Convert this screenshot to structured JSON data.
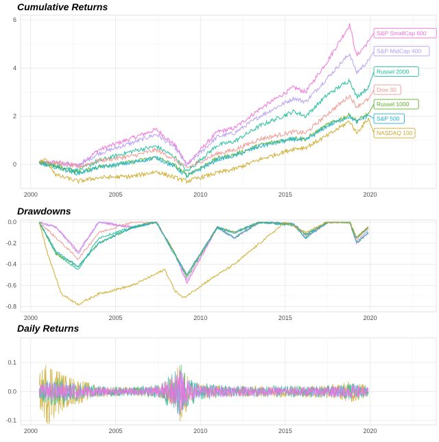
{
  "colors": {
    "S&P SmallCap 600": "#f06fd8",
    "S&P MidCap 400": "#b69cf5",
    "Russel 2000": "#1cbc9a",
    "Dow 30": "#f0958d",
    "Russel 1000": "#58b026",
    "S&P 500": "#1fb2d6",
    "NASDAQ 100": "#cda826"
  },
  "chart_data": [
    {
      "type": "line",
      "title": "Cumulative Returns",
      "xlim": [
        1999.4,
        2023.9
      ],
      "ylim": [
        -1.0,
        6.2
      ],
      "x_ticks": [
        2000,
        2005,
        2010,
        2015,
        2020
      ],
      "x_tick_labels": [
        "2000",
        "2005",
        "2010",
        "2015",
        "2020"
      ],
      "y_ticks": [
        0,
        2,
        4,
        6
      ],
      "y_tick_labels": [
        "0",
        "2",
        "4",
        "6"
      ],
      "grid": true,
      "series": [
        {
          "name": "S&P SmallCap 600",
          "label_y": 5.45,
          "x": [
            2000.5,
            2001.5,
            2002.8,
            2004.0,
            2006.0,
            2007.4,
            2008.5,
            2009.2,
            2011.0,
            2012.0,
            2013.5,
            2015.5,
            2016.2,
            2017.5,
            2018.8,
            2019.2,
            2019.9
          ],
          "values": [
            0.05,
            0.1,
            -0.05,
            0.6,
            1.1,
            1.45,
            0.8,
            0.0,
            1.35,
            1.5,
            2.3,
            3.2,
            3.0,
            4.3,
            5.8,
            4.5,
            5.1
          ]
        },
        {
          "name": "S&P MidCap 400",
          "label_y": 4.7,
          "x": [
            2000.5,
            2001.5,
            2002.8,
            2004.0,
            2006.0,
            2007.4,
            2008.5,
            2009.2,
            2011.0,
            2012.0,
            2013.5,
            2015.5,
            2016.2,
            2017.5,
            2018.8,
            2019.2,
            2019.9
          ],
          "values": [
            0.05,
            0.05,
            -0.05,
            0.45,
            0.9,
            1.25,
            0.7,
            -0.05,
            1.15,
            1.3,
            2.0,
            2.75,
            2.6,
            3.6,
            4.6,
            3.8,
            4.3
          ]
        },
        {
          "name": "Russel 2000",
          "label_y": 3.85,
          "x": [
            2000.5,
            2001.5,
            2002.8,
            2004.0,
            2006.0,
            2007.4,
            2008.5,
            2009.2,
            2011.0,
            2012.0,
            2013.5,
            2015.5,
            2016.2,
            2017.5,
            2018.8,
            2019.2,
            2019.9
          ],
          "values": [
            0.05,
            -0.05,
            -0.25,
            0.15,
            0.55,
            0.75,
            0.3,
            -0.3,
            0.8,
            0.95,
            1.6,
            2.2,
            2.0,
            2.9,
            3.5,
            2.8,
            3.2
          ]
        },
        {
          "name": "Dow 30",
          "label_y": 3.1,
          "x": [
            2000.5,
            2001.5,
            2002.8,
            2004.0,
            2006.0,
            2007.4,
            2008.5,
            2009.2,
            2011.0,
            2012.0,
            2013.5,
            2015.5,
            2016.2,
            2017.5,
            2018.8,
            2019.2,
            2019.9
          ],
          "values": [
            0.05,
            0.05,
            -0.1,
            0.15,
            0.35,
            0.6,
            0.2,
            -0.15,
            0.45,
            0.6,
            1.05,
            1.35,
            1.3,
            2.1,
            2.85,
            2.4,
            2.7
          ]
        },
        {
          "name": "Russel 1000",
          "label_y": 2.5,
          "x": [
            2000.5,
            2001.5,
            2002.8,
            2004.0,
            2006.0,
            2007.4,
            2008.5,
            2009.2,
            2011.0,
            2012.0,
            2013.5,
            2015.5,
            2016.2,
            2017.5,
            2018.8,
            2019.2,
            2019.9
          ],
          "values": [
            0.05,
            -0.1,
            -0.35,
            -0.1,
            0.1,
            0.3,
            -0.05,
            -0.45,
            0.25,
            0.4,
            0.8,
            1.1,
            1.05,
            1.65,
            2.05,
            1.8,
            2.1
          ]
        },
        {
          "name": "S&P 500",
          "label_y": 1.9,
          "x": [
            2000.5,
            2001.5,
            2002.8,
            2004.0,
            2006.0,
            2007.4,
            2008.5,
            2009.2,
            2011.0,
            2012.0,
            2013.5,
            2015.5,
            2016.2,
            2017.5,
            2018.8,
            2019.2,
            2019.9
          ],
          "values": [
            0.05,
            -0.12,
            -0.38,
            -0.12,
            0.08,
            0.28,
            -0.1,
            -0.5,
            0.2,
            0.35,
            0.75,
            1.05,
            1.0,
            1.6,
            2.0,
            1.75,
            2.05
          ]
        },
        {
          "name": "NASDAQ 100",
          "label_y": 1.3,
          "x": [
            2000.5,
            2000.9,
            2001.5,
            2002.8,
            2004.0,
            2006.0,
            2007.4,
            2008.5,
            2009.2,
            2011.0,
            2012.0,
            2013.5,
            2015.5,
            2016.2,
            2017.5,
            2018.8,
            2019.2,
            2019.9
          ],
          "values": [
            0.1,
            0.2,
            -0.45,
            -0.7,
            -0.55,
            -0.5,
            -0.3,
            -0.55,
            -0.7,
            -0.35,
            -0.2,
            0.2,
            0.65,
            0.7,
            1.2,
            1.8,
            1.3,
            1.9
          ]
        }
      ]
    },
    {
      "type": "line",
      "title": "Drawdowns",
      "xlim": [
        1999.4,
        2023.9
      ],
      "ylim": [
        -0.85,
        0.02
      ],
      "x_ticks": [
        2000,
        2005,
        2010,
        2015,
        2020
      ],
      "x_tick_labels": [
        "2000",
        "2005",
        "2010",
        "2015",
        "2020"
      ],
      "y_ticks": [
        0.0,
        -0.2,
        -0.4,
        -0.6,
        -0.8
      ],
      "y_tick_labels": [
        "0.0",
        "-0.2",
        "-0.4",
        "-0.6",
        "-0.8"
      ],
      "grid": true,
      "series": [
        {
          "name": "S&P SmallCap 600",
          "x": [
            2000.5,
            2001.5,
            2002.8,
            2004.0,
            2006.0,
            2007.4,
            2008.5,
            2009.2,
            2011.0,
            2012.0,
            2013.5,
            2015.5,
            2016.2,
            2017.5,
            2018.8,
            2019.2,
            2019.9
          ],
          "values": [
            0.0,
            -0.05,
            -0.28,
            0.0,
            -0.05,
            0.0,
            -0.3,
            -0.58,
            -0.05,
            -0.15,
            0.0,
            -0.02,
            -0.15,
            0.0,
            0.0,
            -0.2,
            -0.1
          ]
        },
        {
          "name": "S&P MidCap 400",
          "x": [
            2000.5,
            2001.5,
            2002.8,
            2004.0,
            2006.0,
            2007.4,
            2008.5,
            2009.2,
            2011.0,
            2012.0,
            2013.5,
            2015.5,
            2016.2,
            2017.5,
            2018.8,
            2019.2,
            2019.9
          ],
          "values": [
            0.0,
            -0.05,
            -0.3,
            0.0,
            -0.05,
            0.0,
            -0.3,
            -0.55,
            -0.05,
            -0.15,
            0.0,
            -0.02,
            -0.15,
            0.0,
            0.0,
            -0.18,
            -0.08
          ]
        },
        {
          "name": "Russel 2000",
          "x": [
            2000.5,
            2001.5,
            2002.8,
            2004.0,
            2006.0,
            2007.4,
            2008.5,
            2009.2,
            2011.0,
            2012.0,
            2013.5,
            2015.5,
            2016.2,
            2017.5,
            2018.8,
            2019.2,
            2019.9
          ],
          "values": [
            0.0,
            -0.3,
            -0.45,
            -0.15,
            -0.05,
            0.0,
            -0.3,
            -0.5,
            -0.05,
            -0.15,
            0.0,
            -0.03,
            -0.15,
            0.0,
            0.0,
            -0.2,
            -0.1
          ]
        },
        {
          "name": "Dow 30",
          "x": [
            2000.5,
            2001.5,
            2002.8,
            2004.0,
            2006.0,
            2007.4,
            2008.5,
            2009.2,
            2011.0,
            2012.0,
            2013.5,
            2015.5,
            2016.2,
            2017.5,
            2018.8,
            2019.2,
            2019.9
          ],
          "values": [
            0.0,
            -0.15,
            -0.35,
            -0.1,
            0.0,
            0.0,
            -0.3,
            -0.5,
            -0.05,
            -0.1,
            0.0,
            -0.02,
            -0.12,
            0.0,
            0.0,
            -0.15,
            -0.05
          ]
        },
        {
          "name": "Russel 1000",
          "x": [
            2000.5,
            2001.5,
            2002.8,
            2004.0,
            2006.0,
            2007.4,
            2008.5,
            2009.2,
            2011.0,
            2012.0,
            2013.5,
            2015.5,
            2016.2,
            2017.5,
            2018.8,
            2019.2,
            2019.9
          ],
          "values": [
            0.0,
            -0.3,
            -0.42,
            -0.2,
            -0.05,
            0.0,
            -0.3,
            -0.52,
            -0.05,
            -0.1,
            0.0,
            -0.02,
            -0.12,
            0.0,
            0.0,
            -0.15,
            -0.05
          ]
        },
        {
          "name": "S&P 500",
          "x": [
            2000.5,
            2001.5,
            2002.8,
            2004.0,
            2006.0,
            2007.4,
            2008.5,
            2009.2,
            2011.0,
            2012.0,
            2013.5,
            2015.5,
            2016.2,
            2017.5,
            2018.8,
            2019.2,
            2019.9
          ],
          "values": [
            0.0,
            -0.28,
            -0.42,
            -0.2,
            -0.05,
            0.0,
            -0.32,
            -0.5,
            -0.05,
            -0.1,
            0.0,
            -0.02,
            -0.12,
            0.0,
            0.0,
            -0.15,
            -0.05
          ]
        },
        {
          "name": "NASDAQ 100",
          "x": [
            2000.5,
            2001.0,
            2001.8,
            2002.8,
            2004.0,
            2006.0,
            2007.9,
            2008.5,
            2009.0,
            2010.5,
            2012.0,
            2013.5,
            2015.0,
            2016.2,
            2017.5,
            2018.8,
            2019.2,
            2019.9
          ],
          "values": [
            0.0,
            -0.3,
            -0.68,
            -0.78,
            -0.68,
            -0.6,
            -0.45,
            -0.65,
            -0.72,
            -0.55,
            -0.4,
            -0.2,
            0.0,
            -0.1,
            0.0,
            0.0,
            -0.15,
            -0.05
          ]
        }
      ]
    },
    {
      "type": "line",
      "title": "Daily Returns",
      "xlim": [
        1999.4,
        2023.9
      ],
      "ylim": [
        -0.115,
        0.185
      ],
      "x_ticks": [
        2000,
        2005,
        2010,
        2015,
        2020
      ],
      "x_tick_labels": [
        "2000",
        "2005",
        "2010",
        "2015",
        "2020"
      ],
      "y_ticks": [
        0.1,
        0.0,
        -0.1
      ],
      "y_tick_labels": [
        "0.1",
        "0.0",
        "-0.1"
      ],
      "grid": true,
      "series": [
        {
          "name": "NASDAQ 100",
          "x": [
            2000.5,
            2001.0,
            2002.0,
            2003.0,
            2004.0,
            2006.0,
            2007.5,
            2008.5,
            2008.8,
            2009.3,
            2010.0,
            2012.0,
            2015.0,
            2018.0,
            2019.0,
            2019.9
          ],
          "amplitude": [
            0.06,
            0.12,
            0.06,
            0.04,
            0.02,
            0.015,
            0.02,
            0.06,
            0.12,
            0.05,
            0.025,
            0.02,
            0.02,
            0.025,
            0.04,
            0.02
          ]
        },
        {
          "name": "Russel 2000",
          "x": [
            2000.5,
            2001.0,
            2002.0,
            2003.0,
            2004.0,
            2006.0,
            2007.5,
            2008.5,
            2008.8,
            2009.3,
            2010.0,
            2012.0,
            2015.0,
            2018.0,
            2019.0,
            2019.9
          ],
          "amplitude": [
            0.03,
            0.05,
            0.045,
            0.03,
            0.02,
            0.015,
            0.025,
            0.07,
            0.11,
            0.05,
            0.03,
            0.02,
            0.02,
            0.02,
            0.03,
            0.02
          ]
        },
        {
          "name": "S&P MidCap 400",
          "x": [
            2000.5,
            2001.0,
            2002.0,
            2003.0,
            2004.0,
            2006.0,
            2007.5,
            2008.5,
            2008.8,
            2009.3,
            2010.0,
            2012.0,
            2015.0,
            2018.0,
            2019.0,
            2019.9
          ],
          "amplitude": [
            0.025,
            0.035,
            0.035,
            0.025,
            0.015,
            0.012,
            0.02,
            0.06,
            0.09,
            0.04,
            0.025,
            0.018,
            0.015,
            0.02,
            0.025,
            0.015
          ]
        },
        {
          "name": "S&P SmallCap 600",
          "x": [
            2000.5,
            2001.0,
            2002.0,
            2003.0,
            2004.0,
            2006.0,
            2007.5,
            2008.5,
            2008.8,
            2009.3,
            2010.0,
            2012.0,
            2015.0,
            2018.0,
            2019.0,
            2019.9
          ],
          "amplitude": [
            0.02,
            0.03,
            0.03,
            0.02,
            0.014,
            0.012,
            0.018,
            0.05,
            0.08,
            0.035,
            0.022,
            0.016,
            0.014,
            0.018,
            0.022,
            0.014
          ]
        }
      ]
    }
  ]
}
